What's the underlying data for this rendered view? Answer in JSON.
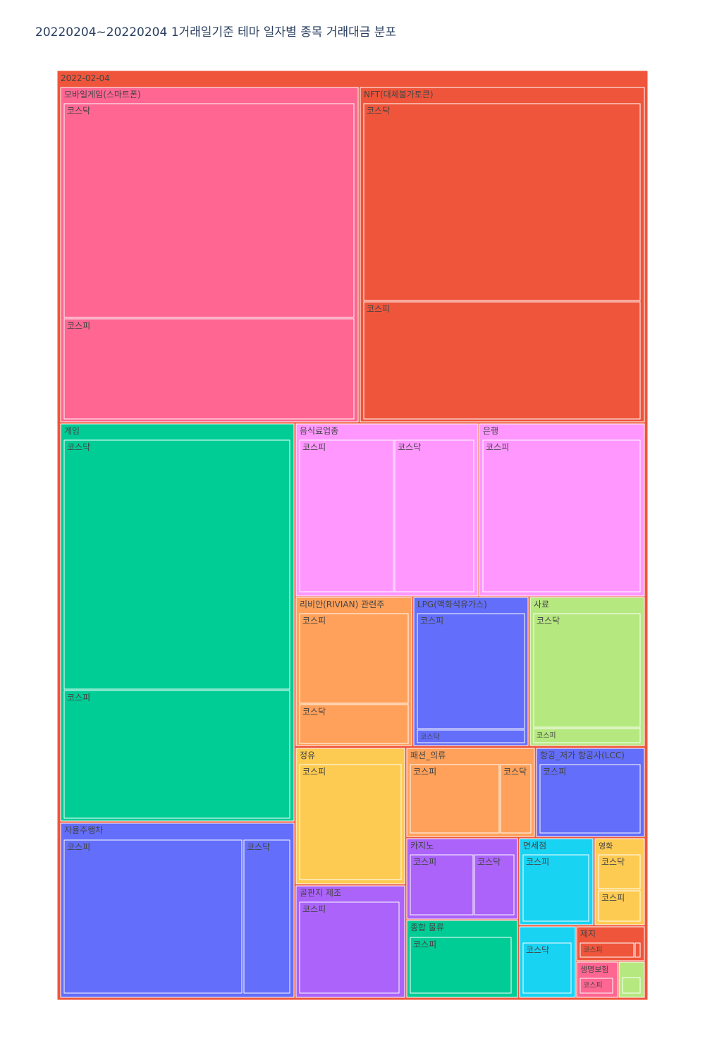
{
  "chart_data": {
    "type": "treemap",
    "title": "20220204~20220204 1거래일기준 테마 일자별 종목 거래대금 분포",
    "root": {
      "label": "2022-02-04",
      "color": "#EF553B",
      "themes": [
        {
          "label": "모바일게임(스마트폰)",
          "color": "#FF6692",
          "children": [
            {
              "label": "코스닥",
              "value": 33.0
            },
            {
              "label": "코스피",
              "value": 15.0
            }
          ]
        },
        {
          "label": "NFT(대체불가토큰)",
          "color": "#EF553B",
          "children": [
            {
              "label": "코스닥",
              "value": 31.7
            },
            {
              "label": "코스피",
              "value": 17.0
            }
          ]
        },
        {
          "label": "게임",
          "color": "#00CC96",
          "children": [
            {
              "label": "코스닥",
              "value": 29.7
            },
            {
              "label": "코스피",
              "value": 16.0
            }
          ]
        },
        {
          "label": "자율주행차",
          "color": "#636EFA",
          "children": [
            {
              "label": "코스피",
              "value": 17.0
            },
            {
              "label": "코스닥",
              "value": 4.5
            }
          ]
        },
        {
          "label": "음식료업종",
          "color": "#FF97FF",
          "children": [
            {
              "label": "코스피",
              "value": 8.5
            },
            {
              "label": "코스닥",
              "value": 7.4
            }
          ]
        },
        {
          "label": "은행",
          "color": "#FF97FF",
          "children": [
            {
              "label": "코스피",
              "value": 13.3
            }
          ]
        },
        {
          "label": "리비안(RIVIAN) 관련주",
          "color": "#FFA15A",
          "children": [
            {
              "label": "코스피",
              "value": 7.0
            },
            {
              "label": "코스닥",
              "value": 3.0
            }
          ]
        },
        {
          "label": "LPG(액화석유가스)",
          "color": "#636EFA",
          "children": [
            {
              "label": "코스피",
              "value": 8.7
            },
            {
              "label": "코스닥",
              "value": 1.4
            }
          ]
        },
        {
          "label": "사료",
          "color": "#B6E880",
          "children": [
            {
              "label": "코스닥",
              "value": 8.6
            },
            {
              "label": "코스피",
              "value": 1.5
            }
          ]
        },
        {
          "label": "정유",
          "color": "#FECB52",
          "children": [
            {
              "label": "코스피",
              "value": 8.5
            }
          ]
        },
        {
          "label": "골판지 제조",
          "color": "#AB63FA",
          "children": [
            {
              "label": "코스피",
              "value": 6.2
            }
          ]
        },
        {
          "label": "패션_의류",
          "color": "#FFA15A",
          "children": [
            {
              "label": "코스피",
              "value": 4.7
            },
            {
              "label": "코스닥",
              "value": 1.3
            }
          ]
        },
        {
          "label": "항공_저가 항공사(LCC)",
          "color": "#636EFA",
          "children": [
            {
              "label": "코스피",
              "value": 5.7
            }
          ]
        },
        {
          "label": "카지노",
          "color": "#AB63FA",
          "children": [
            {
              "label": "코스피",
              "value": 3.4
            },
            {
              "label": "코스닥",
              "value": 2.1
            }
          ]
        },
        {
          "label": "종합 물류",
          "color": "#00CC96",
          "children": [
            {
              "label": "코스피",
              "value": 4.6
            }
          ]
        },
        {
          "label": "면세점",
          "color": "#19D3F3",
          "children": [
            {
              "label": "코스피",
              "value": 3.9
            }
          ]
        },
        {
          "label": "영화",
          "color": "#FECB52",
          "children": [
            {
              "label": "코스닥",
              "value": 1.6
            },
            {
              "label": "코스피",
              "value": 1.4
            }
          ]
        },
        {
          "label": "",
          "color": "#19D3F3",
          "children": [
            {
              "label": "코스닥",
              "value": 2.8
            }
          ]
        },
        {
          "label": "제지",
          "color": "#EF553B",
          "children": [
            {
              "label": "코스피",
              "value": 0.8
            },
            {
              "label": "",
              "value": 0.06
            }
          ]
        },
        {
          "label": "생명보험",
          "color": "#FF6692",
          "children": [
            {
              "label": "코스피",
              "value": 0.6
            }
          ]
        },
        {
          "label": "",
          "color": "#B6E880",
          "children": [
            {
              "label": "",
              "value": 0.4
            }
          ]
        }
      ]
    }
  }
}
